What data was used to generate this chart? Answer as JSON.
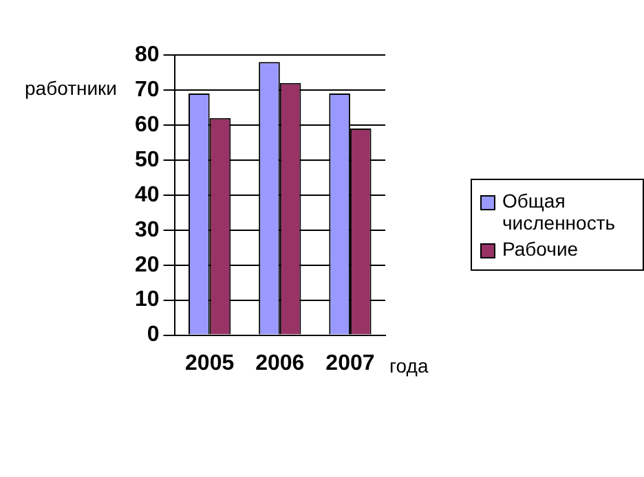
{
  "chart_data": {
    "type": "bar",
    "xlabel": "года",
    "ylabel": "работники",
    "categories": [
      "2005",
      "2006",
      "2007"
    ],
    "series": [
      {
        "name": "Общая численность",
        "color": "#9999ff",
        "values": [
          69,
          78,
          69
        ]
      },
      {
        "name": "Рабочие",
        "color": "#993366",
        "values": [
          62,
          72,
          59
        ]
      }
    ],
    "ylim": [
      0,
      80
    ],
    "yticks": [
      0,
      10,
      20,
      30,
      40,
      50,
      60,
      70,
      80
    ],
    "grid": "y",
    "legend": "right"
  }
}
